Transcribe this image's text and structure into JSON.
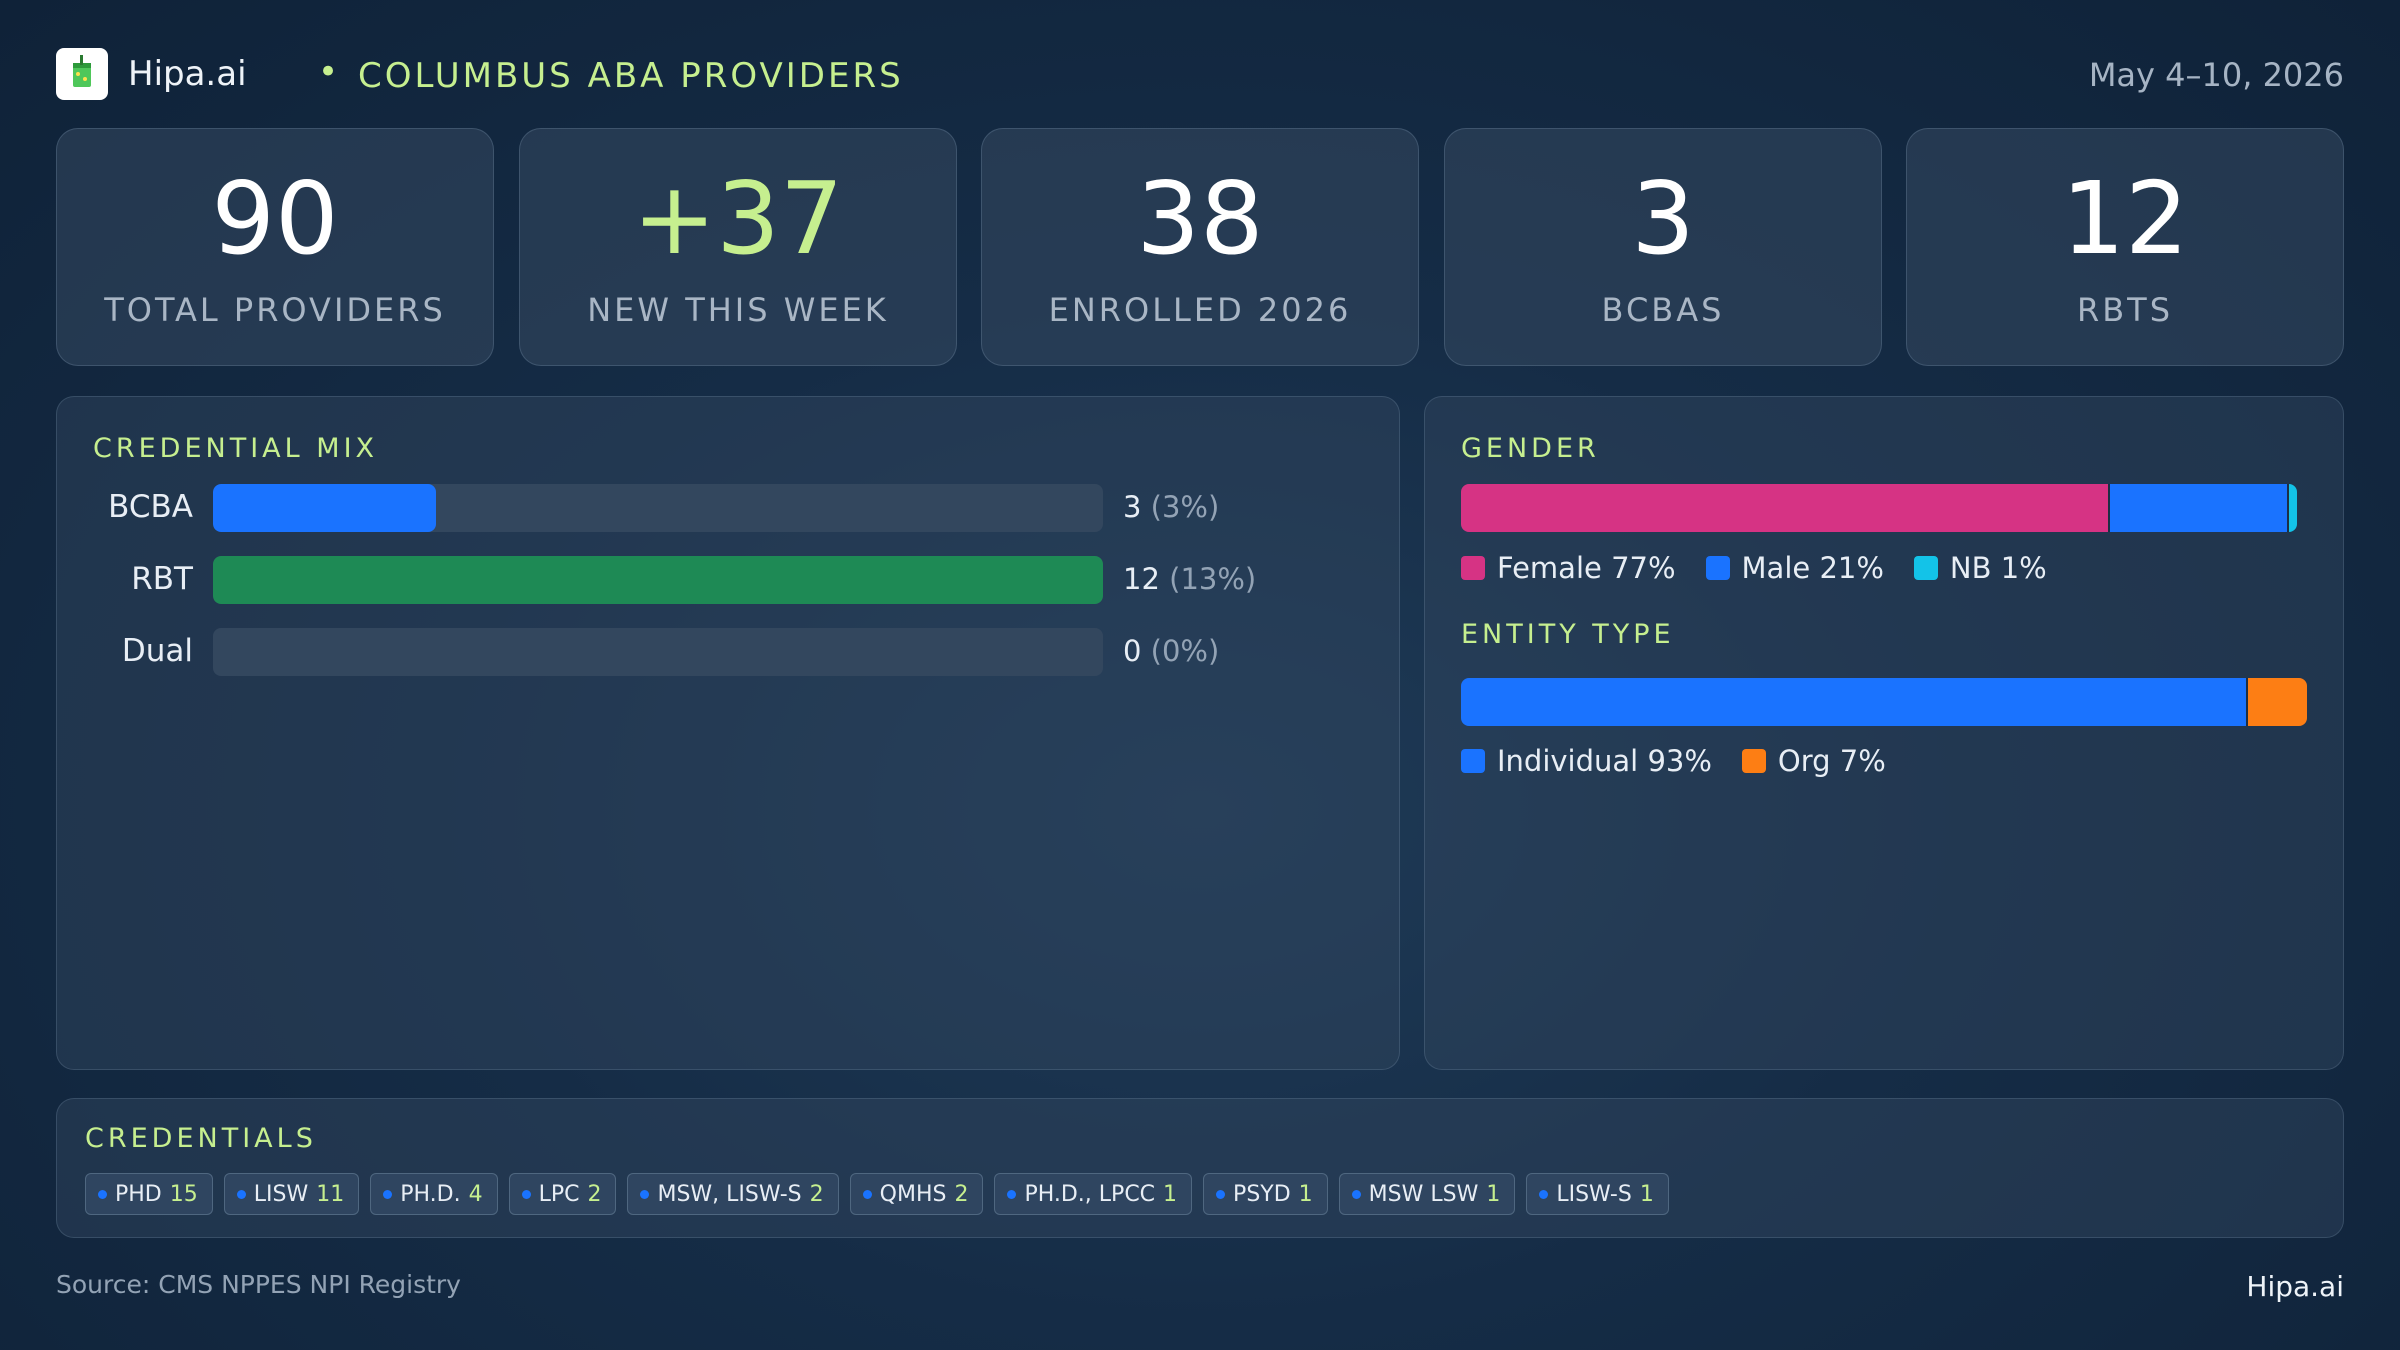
{
  "header": {
    "brand": "Hipa.ai",
    "separator": "•",
    "title": "COLUMBUS ABA PROVIDERS",
    "date_range": "May 4–10, 2026",
    "logo_icon": "drink-cup-icon"
  },
  "stats": [
    {
      "value": "90",
      "label": "TOTAL PROVIDERS"
    },
    {
      "value": "+37",
      "label": "NEW THIS WEEK"
    },
    {
      "value": "38",
      "label": "ENROLLED 2026"
    },
    {
      "value": "3",
      "label": "BCBAS"
    },
    {
      "value": "12",
      "label": "RBTS"
    }
  ],
  "credential_mix": {
    "title": "CREDENTIAL MIX",
    "rows": [
      {
        "label": "BCBA",
        "count": "3",
        "pct": "(3%)",
        "fraction": 0.25,
        "color": "#1a73ff"
      },
      {
        "label": "RBT",
        "count": "12",
        "pct": "(13%)",
        "fraction": 1.0,
        "color": "#1e8a55"
      },
      {
        "label": "Dual",
        "count": "0",
        "pct": "(0%)",
        "fraction": 0.0,
        "color": "#1a73ff"
      }
    ]
  },
  "gender": {
    "title": "GENDER",
    "segments": [
      {
        "label": "Female 77%",
        "value": 77,
        "color": "#d63384"
      },
      {
        "label": "Male 21%",
        "value": 21,
        "color": "#1a73ff"
      },
      {
        "label": "NB 1%",
        "value": 1,
        "color": "#13c3e8"
      }
    ]
  },
  "entity_type": {
    "title": "ENTITY TYPE",
    "segments": [
      {
        "label": "Individual 93%",
        "value": 93,
        "color": "#1a73ff"
      },
      {
        "label": "Org 7%",
        "value": 7,
        "color": "#fd7e14"
      }
    ]
  },
  "credentials": {
    "title": "CREDENTIALS",
    "chips": [
      {
        "name": "PHD",
        "count": "15"
      },
      {
        "name": "LISW",
        "count": "11"
      },
      {
        "name": "PH.D.",
        "count": "4"
      },
      {
        "name": "LPC",
        "count": "2"
      },
      {
        "name": "MSW, LISW-S",
        "count": "2"
      },
      {
        "name": "QMHS",
        "count": "2"
      },
      {
        "name": "PH.D., LPCC",
        "count": "1"
      },
      {
        "name": "PSYD",
        "count": "1"
      },
      {
        "name": "MSW LSW",
        "count": "1"
      },
      {
        "name": "LISW-S",
        "count": "1"
      }
    ]
  },
  "footer": {
    "source": "Source: CMS NPPES NPI Registry",
    "brand": "Hipa.ai"
  }
}
